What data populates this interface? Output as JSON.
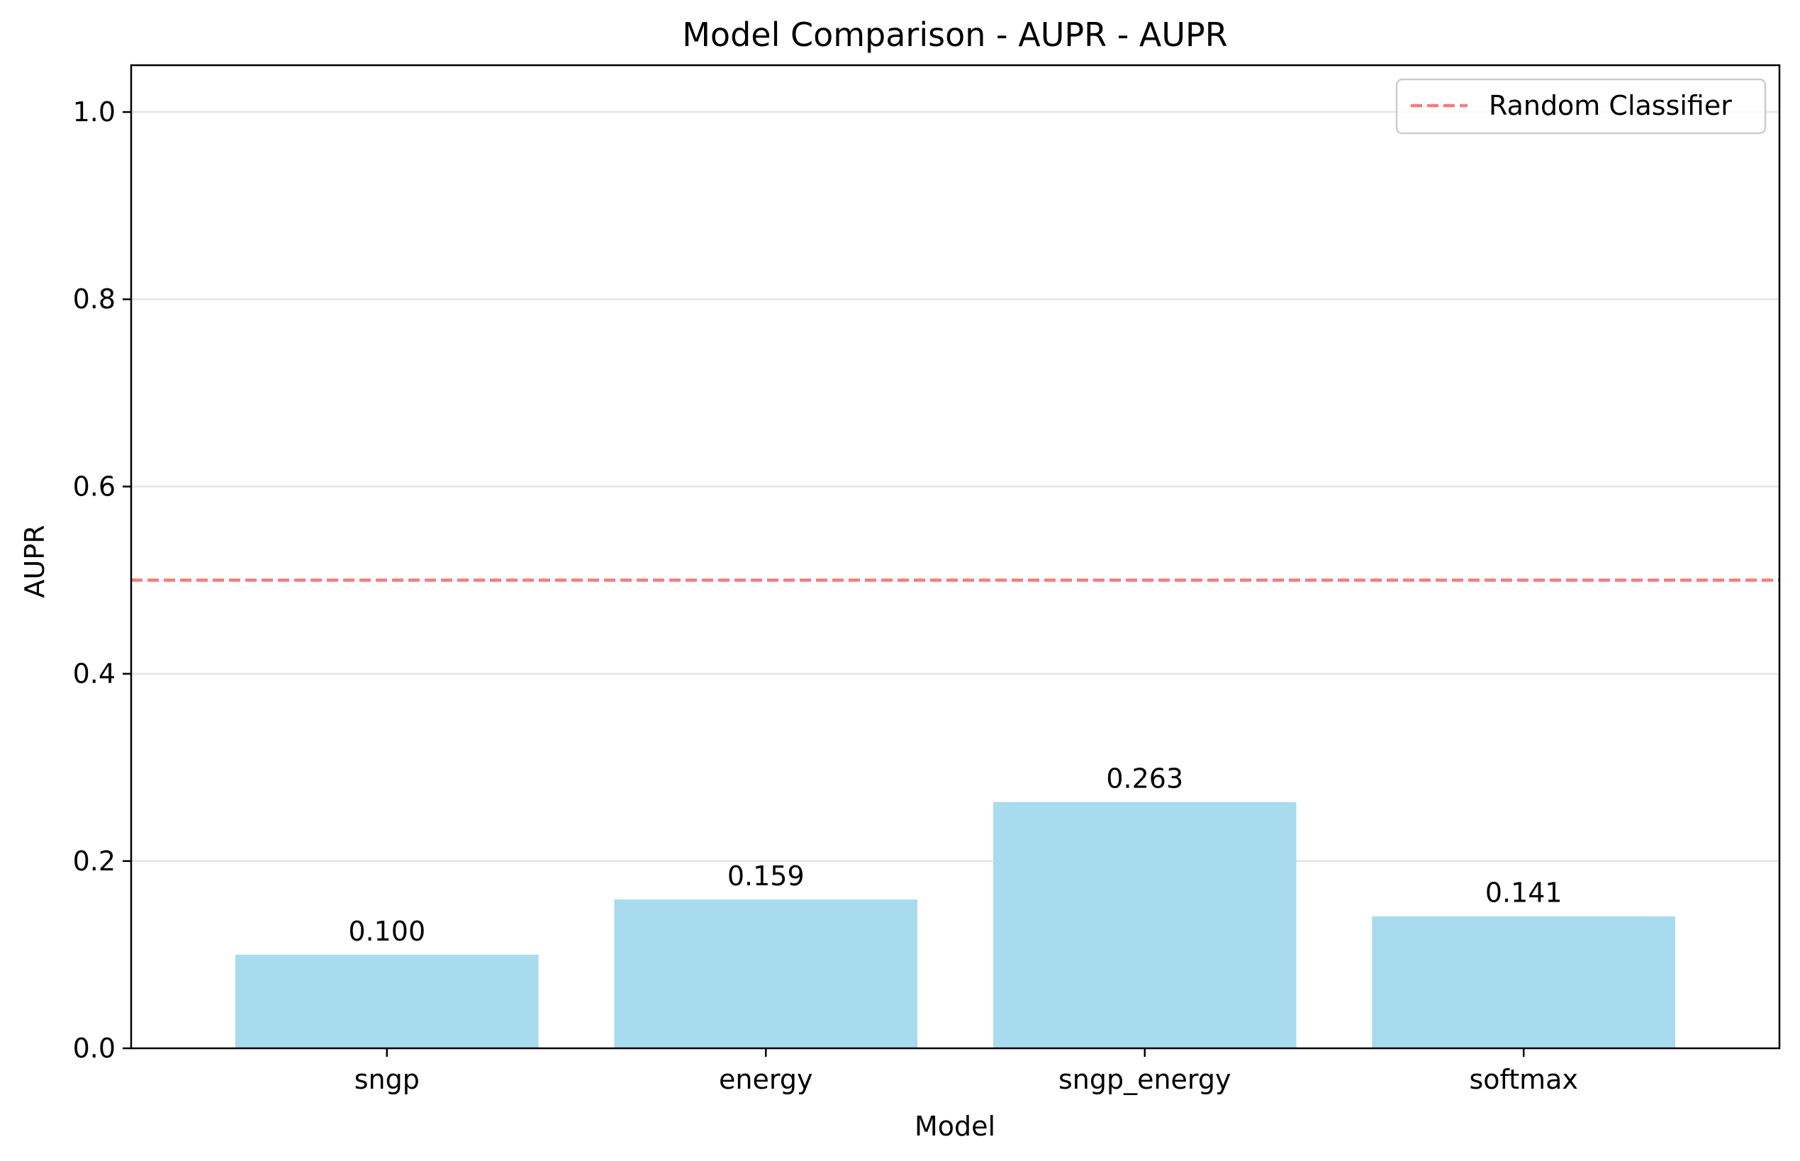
{
  "chart_data": {
    "type": "bar",
    "title": "Model Comparison - AUPR - AUPR",
    "xlabel": "Model",
    "ylabel": "AUPR",
    "categories": [
      "sngp",
      "energy",
      "sngp_energy",
      "softmax"
    ],
    "values": [
      0.1,
      0.159,
      0.263,
      0.141
    ],
    "value_labels": [
      "0.100",
      "0.159",
      "0.263",
      "0.141"
    ],
    "ylim": [
      0,
      1.05
    ],
    "yticks": [
      0.0,
      0.2,
      0.4,
      0.6,
      0.8,
      1.0
    ],
    "ytick_labels": [
      "0.0",
      "0.2",
      "0.4",
      "0.6",
      "0.8",
      "1.0"
    ],
    "grid": "y",
    "reference_line": {
      "name": "Random Classifier",
      "value": 0.5,
      "style": "dashed"
    },
    "legend": {
      "placement": "top-right",
      "entries": [
        "Random Classifier"
      ]
    },
    "colors": {
      "bar": "#a9dbee",
      "reference_line": "#f47c7c",
      "grid": "#e5e5e5"
    }
  }
}
